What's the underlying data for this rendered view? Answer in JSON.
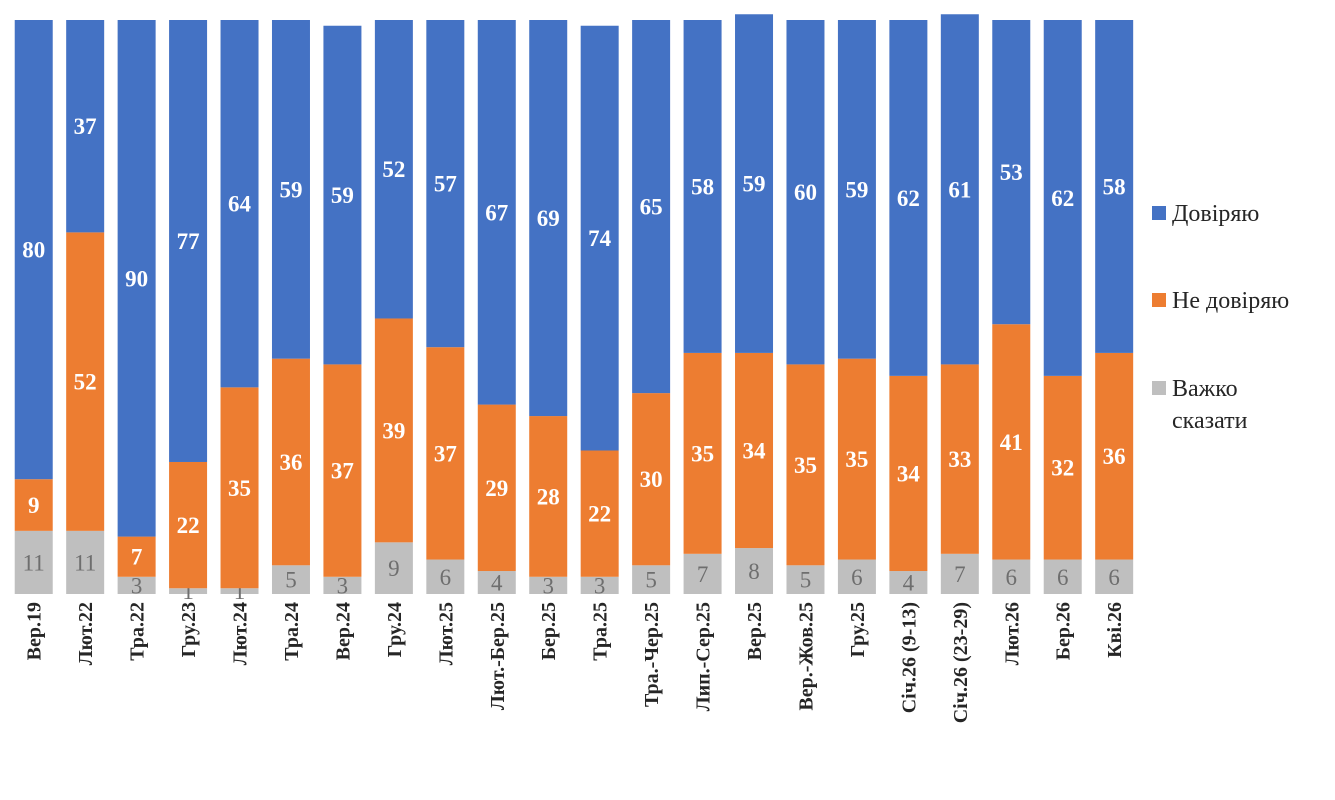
{
  "chart_data": {
    "type": "bar",
    "stacked": true,
    "categories": [
      "Вер.19",
      "Лют.22",
      "Тра.22",
      "Гру.23",
      "Лют.24",
      "Тра.24",
      "Вер.24",
      "Гру.24",
      "Лют.25",
      "Лют.-Бер.25",
      "Бер.25",
      "Тра.25",
      "Тра.-Чер.25",
      "Лип.-Сер.25",
      "Вер.25",
      "Вер.-Жов.25",
      "Гру.25",
      "Січ.26 (9-13)",
      "Січ.26 (23-29)",
      "Лют.26",
      "Бер.26",
      "Кві.26"
    ],
    "series": [
      {
        "name": "Важко сказати",
        "color": "#bfbfbf",
        "values": [
          11,
          11,
          3,
          1,
          1,
          5,
          3,
          9,
          6,
          4,
          3,
          3,
          5,
          7,
          8,
          5,
          6,
          4,
          7,
          6,
          6,
          6
        ]
      },
      {
        "name": "Не довіряю",
        "color": "#ed7d31",
        "values": [
          9,
          52,
          7,
          22,
          35,
          36,
          37,
          39,
          37,
          29,
          28,
          22,
          30,
          35,
          34,
          35,
          35,
          34,
          33,
          41,
          32,
          36
        ]
      },
      {
        "name": "Довіряю",
        "color": "#4472c4",
        "values": [
          80,
          37,
          90,
          77,
          64,
          59,
          59,
          52,
          57,
          67,
          69,
          74,
          65,
          58,
          59,
          60,
          59,
          62,
          61,
          53,
          62,
          58
        ]
      }
    ],
    "ylim": [
      0,
      100
    ],
    "grid": false,
    "legend_position": "right",
    "legend": [
      {
        "label": "Довіряю",
        "color": "#4472c4"
      },
      {
        "label": "Не довіряю",
        "color": "#ed7d31"
      },
      {
        "label": "Важко сказати",
        "color": "#bfbfbf"
      }
    ]
  }
}
